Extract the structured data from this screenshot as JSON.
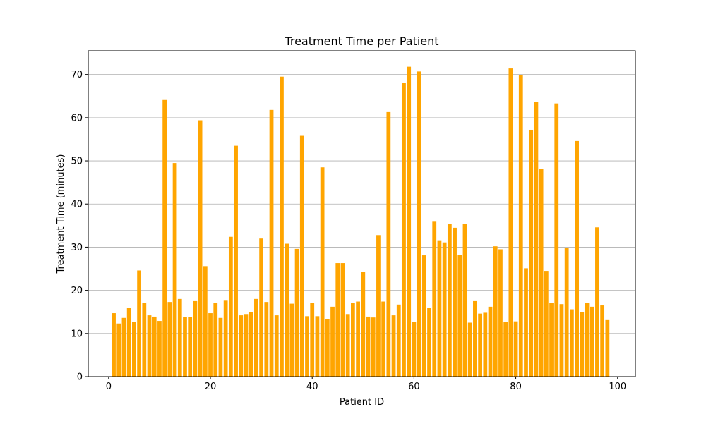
{
  "chart_data": {
    "type": "bar",
    "title": "Treatment Time per Patient",
    "xlabel": "Patient ID",
    "ylabel": "Treatment Time (minutes)",
    "xlim": [
      -4,
      103.5
    ],
    "ylim": [
      0,
      75.5
    ],
    "xticks": [
      0,
      20,
      40,
      60,
      80,
      100
    ],
    "yticks": [
      0,
      10,
      20,
      30,
      40,
      50,
      60,
      70
    ],
    "grid": "y",
    "bar_color": "#ffa500",
    "x": [
      1,
      2,
      3,
      4,
      5,
      6,
      7,
      8,
      9,
      10,
      11,
      12,
      13,
      14,
      15,
      16,
      17,
      18,
      19,
      20,
      21,
      22,
      23,
      24,
      25,
      26,
      27,
      28,
      29,
      30,
      31,
      32,
      33,
      34,
      35,
      36,
      37,
      38,
      39,
      40,
      41,
      42,
      43,
      44,
      45,
      46,
      47,
      48,
      49,
      50,
      51,
      52,
      53,
      54,
      55,
      56,
      57,
      58,
      59,
      60,
      61,
      62,
      63,
      64,
      65,
      66,
      67,
      68,
      69,
      70,
      71,
      72,
      73,
      74,
      75,
      76,
      77,
      78,
      79,
      80,
      81,
      82,
      83,
      84,
      85,
      86,
      87,
      88,
      89,
      90,
      91,
      92,
      93,
      94,
      95,
      96,
      97,
      98
    ],
    "values": [
      14.7,
      12.3,
      13.6,
      16.0,
      12.6,
      24.6,
      17.1,
      14.2,
      13.9,
      12.9,
      64.1,
      17.3,
      49.5,
      18.0,
      13.8,
      13.8,
      17.5,
      59.4,
      25.6,
      14.7,
      17.0,
      13.6,
      17.6,
      32.4,
      53.5,
      14.2,
      14.5,
      14.9,
      18.0,
      32.0,
      17.3,
      61.8,
      14.2,
      69.5,
      30.8,
      16.9,
      29.6,
      55.8,
      14.0,
      17.0,
      14.0,
      48.5,
      13.4,
      16.2,
      26.3,
      26.3,
      14.5,
      17.1,
      17.4,
      24.3,
      13.9,
      13.7,
      32.8,
      17.4,
      61.3,
      14.2,
      16.7,
      68.0,
      71.8,
      12.6,
      70.7,
      28.1,
      16.0,
      35.9,
      31.6,
      31.1,
      35.4,
      34.5,
      28.2,
      35.4,
      12.5,
      17.5,
      14.6,
      14.8,
      16.2,
      30.2,
      29.5,
      12.7,
      71.4,
      12.8,
      69.9,
      25.1,
      57.2,
      63.6,
      48.1,
      24.5,
      17.1,
      63.3,
      16.8,
      29.9,
      15.6,
      54.6,
      15.0,
      17.0,
      16.2,
      34.6,
      16.5,
      13.1
    ]
  }
}
